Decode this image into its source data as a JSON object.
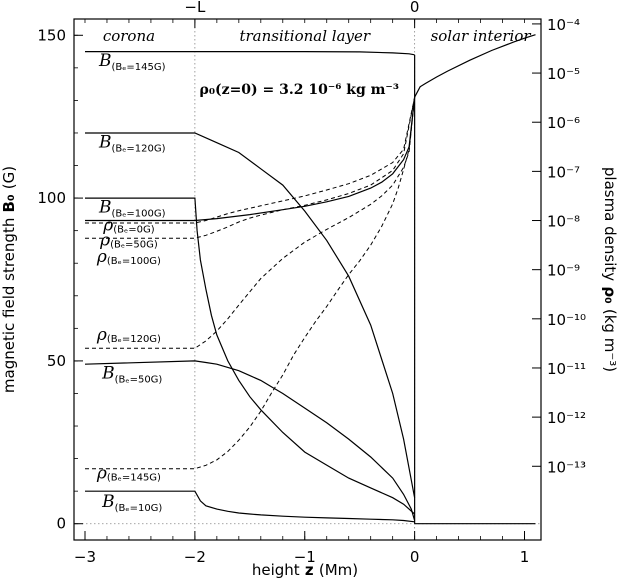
{
  "chart_data": {
    "type": "line",
    "annotation": "ρ₀(z=0) = 3.2 10⁻⁶ kg m⁻³",
    "x_axis": {
      "label": "height",
      "label_symbol": "z",
      "label_unit": "(Mm)",
      "range": [
        -3.1,
        1.15
      ],
      "ticks": [
        {
          "v": -3,
          "label": "−3"
        },
        {
          "v": -2,
          "label": "−2"
        },
        {
          "v": -1,
          "label": "−1"
        },
        {
          "v": 0,
          "label": "0"
        },
        {
          "v": 1,
          "label": "1"
        }
      ],
      "top_ticks": [
        {
          "v": -2,
          "label": "−L"
        },
        {
          "v": 0,
          "label": "0"
        }
      ]
    },
    "y_axis_left": {
      "label": "magnetic field strength",
      "label_symbol": "B₀",
      "label_unit": "(G)",
      "range": [
        -5,
        155
      ],
      "ticks": [
        {
          "v": 0,
          "label": "0"
        },
        {
          "v": 50,
          "label": "50"
        },
        {
          "v": 100,
          "label": "100"
        },
        {
          "v": 150,
          "label": "150"
        }
      ]
    },
    "y_axis_right": {
      "label": "plasma density",
      "label_symbol": "ρ₀",
      "label_unit": "(kg m⁻³)",
      "scale": "log",
      "range_log10": [
        -14.5,
        -3.9
      ],
      "ticks": [
        {
          "v": -4,
          "label": "10⁻⁴"
        },
        {
          "v": -5,
          "label": "10⁻⁵"
        },
        {
          "v": -6,
          "label": "10⁻⁶"
        },
        {
          "v": -7,
          "label": "10⁻⁷"
        },
        {
          "v": -8,
          "label": "10⁻⁸"
        },
        {
          "v": -9,
          "label": "10⁻⁹"
        },
        {
          "v": -10,
          "label": "10⁻¹⁰"
        },
        {
          "v": -11,
          "label": "10⁻¹¹"
        },
        {
          "v": -12,
          "label": "10⁻¹²"
        },
        {
          "v": -13,
          "label": "10⁻¹³"
        }
      ]
    },
    "regions": [
      {
        "name": "corona",
        "x_center": -2.6
      },
      {
        "name": "transitional layer",
        "x_center": -1.0
      },
      {
        "name": "solar interior",
        "x_center": 0.6
      }
    ],
    "B_labels": [
      {
        "sym": "B",
        "sub": "(Bₑ=145G)",
        "x": -2.57,
        "y": 145.5
      },
      {
        "sym": "B",
        "sub": "(Bₑ=120G)",
        "x": -2.57,
        "y": 120.5
      },
      {
        "sym": "B",
        "sub": "(Bₑ=100G)",
        "x": -2.57,
        "y": 100.5
      },
      {
        "sym": "B",
        "sub": "(Bₑ=50G)",
        "x": -2.57,
        "y": 49.5
      },
      {
        "sym": "B",
        "sub": "(Bₑ=10G)",
        "x": -2.57,
        "y": 10.0
      }
    ],
    "rho_labels": [
      {
        "sym": "ρ",
        "sub": "(Bₑ=0G)",
        "x": -2.6,
        "y": 89.5
      },
      {
        "sym": "ρ",
        "sub": "(Bₑ=50G)",
        "x": -2.6,
        "y": 84.8
      },
      {
        "sym": "ρ",
        "sub": "(Bₑ=100G)",
        "x": -2.6,
        "y": 79.8
      },
      {
        "sym": "ρ",
        "sub": "(Bₑ=120G)",
        "x": -2.6,
        "y": 55.8
      },
      {
        "sym": "ρ",
        "sub": "(Bₑ=145G)",
        "x": -2.6,
        "y": 13.2
      }
    ],
    "series": [
      {
        "label_ref": "B_labels.0",
        "style": "solid",
        "axis": "left",
        "x": [
          -3.0,
          -2.0,
          -1.8,
          -1.5,
          -1.0,
          -0.5,
          -0.2,
          -0.05,
          0.0
        ],
        "y": [
          145,
          145,
          145,
          145,
          145,
          144.9,
          144.6,
          144.3,
          144.0
        ]
      },
      {
        "label_ref": "B_labels.1",
        "style": "solid",
        "axis": "left",
        "x": [
          -3.0,
          -2.0,
          -1.8,
          -1.6,
          -1.4,
          -1.2,
          -1.0,
          -0.8,
          -0.6,
          -0.4,
          -0.2,
          -0.1,
          0.0
        ],
        "y": [
          120,
          120,
          117,
          114,
          109,
          104,
          96,
          87,
          76,
          61,
          40,
          26,
          8
        ]
      },
      {
        "label_ref": "B_labels.2",
        "style": "solid",
        "axis": "left",
        "x": [
          -3.0,
          -2.0,
          -1.98,
          -1.95,
          -1.9,
          -1.85,
          -1.8,
          -1.7,
          -1.6,
          -1.5,
          -1.4,
          -1.2,
          -1.0,
          -0.8,
          -0.6,
          -0.4,
          -0.2,
          -0.1,
          0.0
        ],
        "y": [
          100,
          100,
          90,
          81,
          72,
          64,
          58,
          50,
          44,
          39,
          35,
          28,
          22,
          18,
          14,
          11,
          8,
          6,
          3
        ]
      },
      {
        "label_ref": "B_labels.3",
        "style": "solid",
        "axis": "left",
        "x": [
          -3.0,
          -2.0,
          -1.9,
          -1.8,
          -1.7,
          -1.6,
          -1.5,
          -1.4,
          -1.3,
          -1.2,
          -1.0,
          -0.8,
          -0.6,
          -0.4,
          -0.2,
          -0.1,
          -0.03,
          0.0
        ],
        "y": [
          49,
          50,
          49.5,
          49,
          48,
          47,
          45.5,
          44,
          42,
          40,
          35.5,
          31,
          26,
          20.5,
          14,
          9,
          4.5,
          1
        ]
      },
      {
        "label_ref": "B_labels.4",
        "style": "solid",
        "axis": "left",
        "x": [
          -3.0,
          -2.0,
          -1.95,
          -1.9,
          -1.8,
          -1.7,
          -1.6,
          -1.5,
          -1.4,
          -1.2,
          -1.0,
          -0.8,
          -0.6,
          -0.4,
          -0.2,
          -0.1,
          0.0
        ],
        "y": [
          10,
          10,
          7,
          5.5,
          4.5,
          3.8,
          3.3,
          3.0,
          2.7,
          2.3,
          2.0,
          1.8,
          1.6,
          1.4,
          1.2,
          1.0,
          0.6
        ]
      },
      {
        "label_ref": "B_labels",
        "style": "solid",
        "axis": "left",
        "x": [
          0.0,
          0.1,
          0.3,
          0.5,
          0.7,
          0.9,
          1.0,
          1.1
        ],
        "y": [
          0,
          0,
          0,
          0,
          0,
          0,
          0,
          0
        ]
      },
      {
        "label_ref": "rho_labels.0",
        "style": "solid",
        "axis": "right",
        "x": [
          -3.0,
          -2.0,
          -1.8,
          -1.5,
          -1.2,
          -1.0,
          -0.8,
          -0.6,
          -0.4,
          -0.3,
          -0.2,
          -0.1,
          -0.05,
          0.0,
          0.05,
          0.1,
          0.2,
          0.3,
          0.5,
          0.7,
          0.9,
          1.0,
          1.1
        ],
        "y": [
          -8.0,
          -8.0,
          -7.96,
          -7.88,
          -7.78,
          -7.71,
          -7.62,
          -7.51,
          -7.34,
          -7.22,
          -7.05,
          -6.76,
          -6.5,
          -5.49,
          -5.28,
          -5.21,
          -5.08,
          -4.96,
          -4.74,
          -4.54,
          -4.37,
          -4.29,
          -4.22
        ]
      },
      {
        "label_ref": "rho_labels.1",
        "style": "dashed",
        "axis": "right",
        "x": [
          -3.0,
          -2.0,
          -1.9,
          -1.8,
          -1.7,
          -1.6,
          -1.4,
          -1.2,
          -1.0,
          -0.8,
          -0.6,
          -0.4,
          -0.2,
          -0.1,
          0.0
        ],
        "y": [
          -8.05,
          -8.05,
          -8.0,
          -7.93,
          -7.86,
          -7.8,
          -7.7,
          -7.6,
          -7.5,
          -7.38,
          -7.25,
          -7.08,
          -6.82,
          -6.55,
          -5.5
        ]
      },
      {
        "label_ref": "rho_labels.2",
        "style": "dashed",
        "axis": "right",
        "x": [
          -3.0,
          -2.0,
          -1.9,
          -1.8,
          -1.7,
          -1.6,
          -1.5,
          -1.4,
          -1.2,
          -1.0,
          -0.8,
          -0.6,
          -0.4,
          -0.2,
          -0.1,
          0.0
        ],
        "y": [
          -8.36,
          -8.36,
          -8.3,
          -8.22,
          -8.13,
          -8.03,
          -7.95,
          -7.89,
          -7.78,
          -7.69,
          -7.58,
          -7.45,
          -7.28,
          -6.98,
          -6.64,
          -5.5
        ]
      },
      {
        "label_ref": "rho_labels.3",
        "style": "dashed",
        "axis": "right",
        "x": [
          -3.0,
          -2.0,
          -1.9,
          -1.8,
          -1.7,
          -1.6,
          -1.4,
          -1.2,
          -1.0,
          -0.8,
          -0.6,
          -0.4,
          -0.3,
          -0.2,
          -0.1,
          -0.05,
          0.0
        ],
        "y": [
          -10.6,
          -10.6,
          -10.45,
          -10.25,
          -10.0,
          -9.72,
          -9.18,
          -8.77,
          -8.44,
          -8.18,
          -7.94,
          -7.67,
          -7.5,
          -7.28,
          -6.92,
          -6.6,
          -5.5
        ]
      },
      {
        "label_ref": "rho_labels.4",
        "style": "dashed",
        "axis": "right",
        "x": [
          -3.0,
          -2.0,
          -1.9,
          -1.8,
          -1.7,
          -1.6,
          -1.5,
          -1.4,
          -1.3,
          -1.2,
          -1.1,
          -1.0,
          -0.9,
          -0.8,
          -0.7,
          -0.6,
          -0.5,
          -0.4,
          -0.3,
          -0.2,
          -0.15,
          -0.1,
          -0.05,
          0.0
        ],
        "y": [
          -13.05,
          -13.05,
          -12.98,
          -12.87,
          -12.7,
          -12.47,
          -12.2,
          -11.88,
          -11.5,
          -11.14,
          -10.73,
          -10.38,
          -10.05,
          -9.75,
          -9.42,
          -9.1,
          -8.82,
          -8.5,
          -8.12,
          -7.66,
          -7.34,
          -6.96,
          -6.55,
          -5.5
        ]
      }
    ]
  }
}
